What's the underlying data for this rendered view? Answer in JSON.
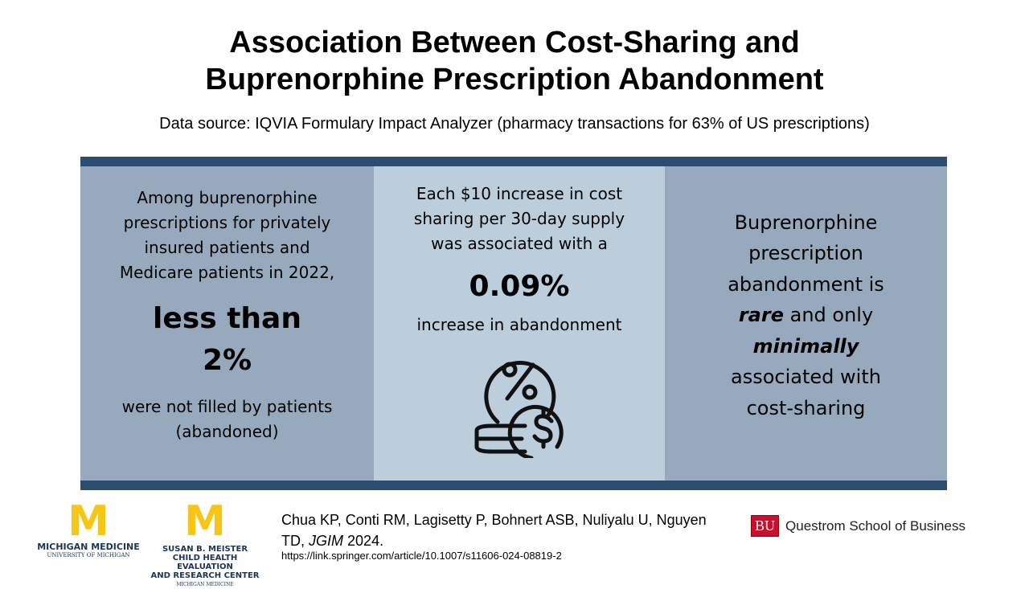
{
  "title": {
    "line1": "Association Between Cost-Sharing and",
    "line2": "Buprenorphine Prescription Abandonment"
  },
  "source": "Data source: IQVIA Formulary Impact Analyzer (pharmacy transactions for 63% of US prescriptions)",
  "panels": {
    "left": {
      "intro": "Among buprenorphine prescriptions for privately insured patients and Medicare patients in 2022,",
      "big1": "less than",
      "big2": "2%",
      "outro": "were not filled by patients (abandoned)"
    },
    "middle": {
      "intro": "Each $10 increase in cost sharing per 30-day supply was associated with a",
      "big": "0.09%",
      "outro": "increase in abandonment",
      "icon": "percent-coins-dollar-icon"
    },
    "right": {
      "t1": "Buprenorphine prescription abandonment is",
      "rare": "rare",
      "t2": "and only",
      "minimally": "minimally",
      "t3": "associated with cost-sharing"
    }
  },
  "colors": {
    "bar": "#2b4d70",
    "side_panel": "#97aabd",
    "middle_panel": "#bccddb",
    "maize": "#f5c518",
    "bu_red": "#c8102e"
  },
  "citation": {
    "authors": "Chua KP, Conti RM, Lagisetty P, Bohnert ASB, Nuliyalu U, Nguyen TD,",
    "journal": "JGIM",
    "year": "2024.",
    "url": "https://link.springer.com/article/10.1007/s11606-024-08819-2"
  },
  "logos": {
    "michigan_medicine": {
      "letter": "M",
      "name": "MICHIGAN MEDICINE",
      "sub": "UNIVERSITY OF MICHIGAN"
    },
    "meister": {
      "letter": "M",
      "l1": "SUSAN B. MEISTER",
      "l2": "CHILD HEALTH EVALUATION",
      "l3": "AND RESEARCH CENTER",
      "sub": "MICHIGAN MEDICINE"
    },
    "bu": {
      "mark": "BU",
      "name": "Questrom School of Business"
    }
  }
}
